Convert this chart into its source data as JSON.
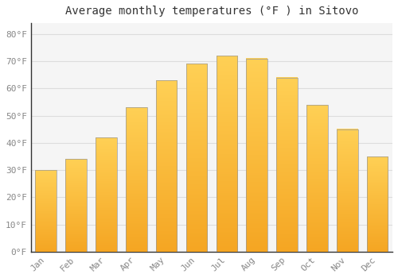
{
  "title": "Average monthly temperatures (°F ) in Sitovo",
  "months": [
    "Jan",
    "Feb",
    "Mar",
    "Apr",
    "May",
    "Jun",
    "Jul",
    "Aug",
    "Sep",
    "Oct",
    "Nov",
    "Dec"
  ],
  "values": [
    30,
    34,
    42,
    53,
    63,
    69,
    72,
    71,
    64,
    54,
    45,
    35
  ],
  "bar_color_bottom": "#F5A623",
  "bar_color_top": "#FFD055",
  "bar_edge_color": "#999999",
  "background_color": "#FFFFFF",
  "plot_bg_color": "#F5F5F5",
  "grid_color": "#DDDDDD",
  "ytick_labels": [
    "0°F",
    "10°F",
    "20°F",
    "30°F",
    "40°F",
    "50°F",
    "60°F",
    "70°F",
    "80°F"
  ],
  "ytick_values": [
    0,
    10,
    20,
    30,
    40,
    50,
    60,
    70,
    80
  ],
  "ylim": [
    0,
    84
  ],
  "title_fontsize": 10,
  "tick_fontsize": 8,
  "tick_color": "#888888",
  "title_color": "#333333",
  "bar_width": 0.7
}
